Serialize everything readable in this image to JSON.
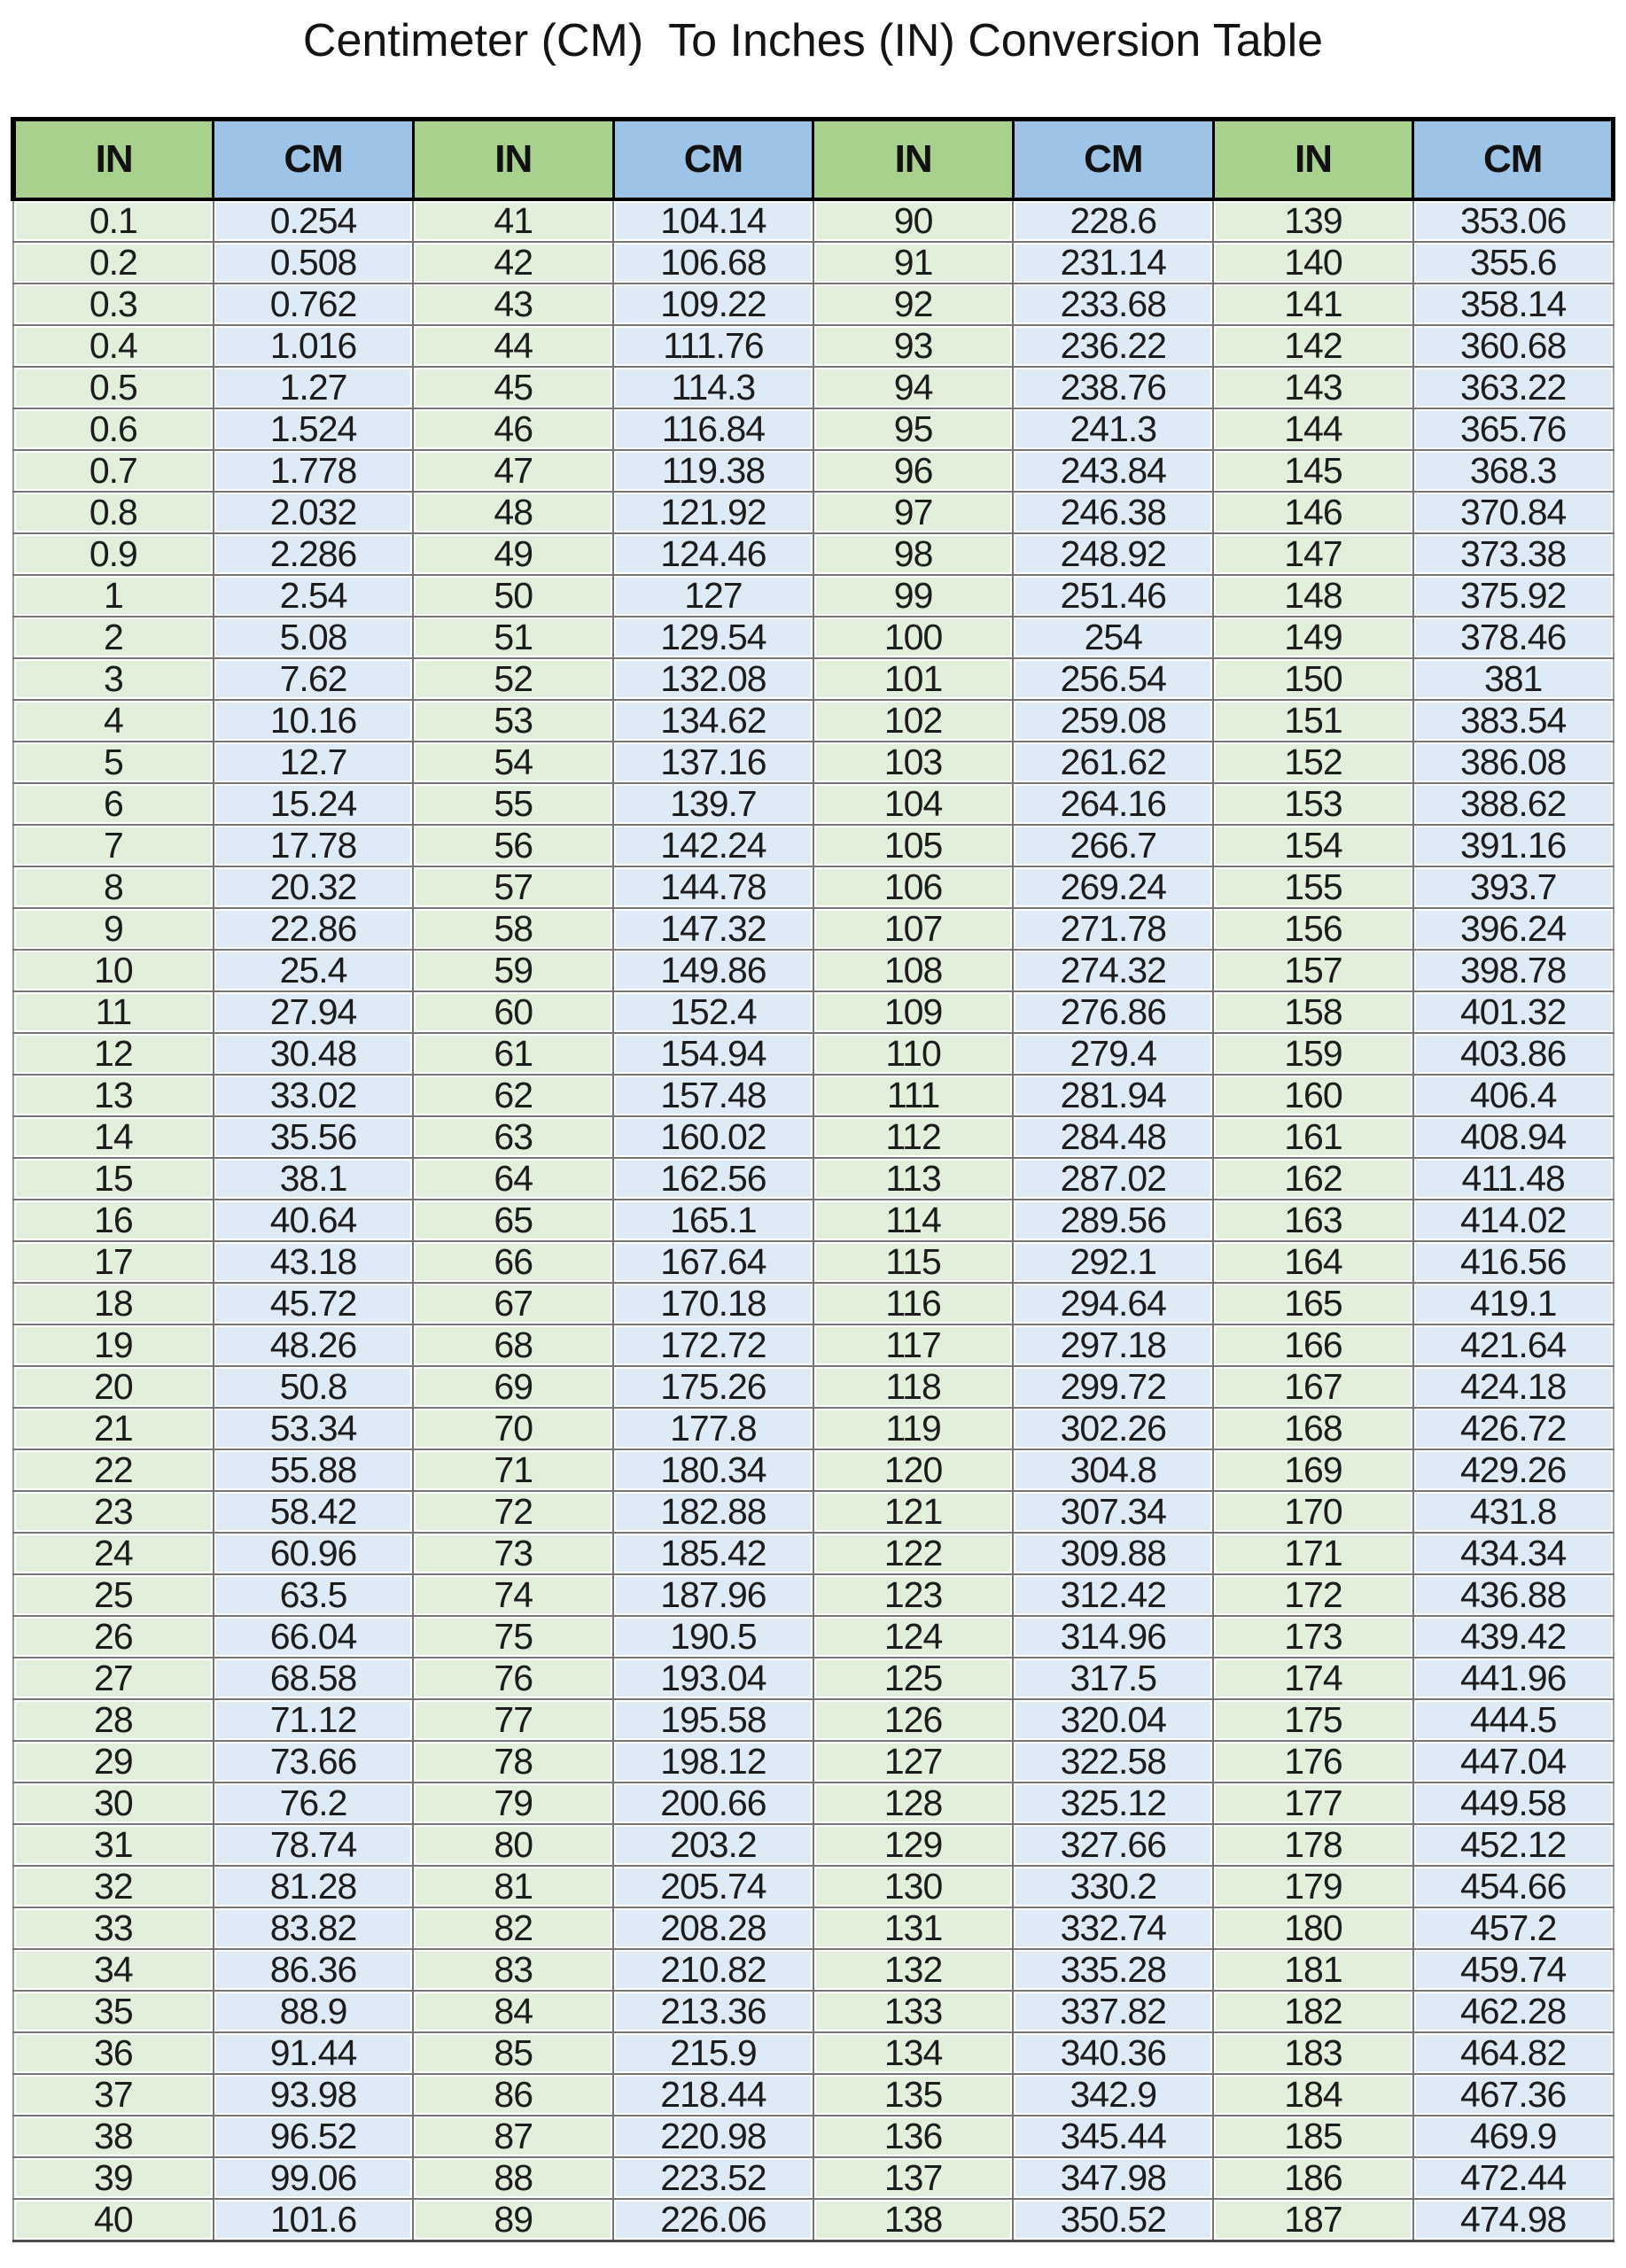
{
  "title": "Centimeter (CM)  To Inches (IN) Conversion Table",
  "colors": {
    "header_green": "#a9d18e",
    "header_blue": "#9dc3e6",
    "cell_green": "#e2efda",
    "cell_blue": "#deebf7",
    "grid_line": "#757575",
    "header_border": "#000000"
  },
  "table": {
    "headers": [
      "IN",
      "CM",
      "IN",
      "CM",
      "IN",
      "CM",
      "IN",
      "CM"
    ],
    "rows": [
      [
        "0.1",
        "0.254",
        "41",
        "104.14",
        "90",
        "228.6",
        "139",
        "353.06"
      ],
      [
        "0.2",
        "0.508",
        "42",
        "106.68",
        "91",
        "231.14",
        "140",
        "355.6"
      ],
      [
        "0.3",
        "0.762",
        "43",
        "109.22",
        "92",
        "233.68",
        "141",
        "358.14"
      ],
      [
        "0.4",
        "1.016",
        "44",
        "111.76",
        "93",
        "236.22",
        "142",
        "360.68"
      ],
      [
        "0.5",
        "1.27",
        "45",
        "114.3",
        "94",
        "238.76",
        "143",
        "363.22"
      ],
      [
        "0.6",
        "1.524",
        "46",
        "116.84",
        "95",
        "241.3",
        "144",
        "365.76"
      ],
      [
        "0.7",
        "1.778",
        "47",
        "119.38",
        "96",
        "243.84",
        "145",
        "368.3"
      ],
      [
        "0.8",
        "2.032",
        "48",
        "121.92",
        "97",
        "246.38",
        "146",
        "370.84"
      ],
      [
        "0.9",
        "2.286",
        "49",
        "124.46",
        "98",
        "248.92",
        "147",
        "373.38"
      ],
      [
        "1",
        "2.54",
        "50",
        "127",
        "99",
        "251.46",
        "148",
        "375.92"
      ],
      [
        "2",
        "5.08",
        "51",
        "129.54",
        "100",
        "254",
        "149",
        "378.46"
      ],
      [
        "3",
        "7.62",
        "52",
        "132.08",
        "101",
        "256.54",
        "150",
        "381"
      ],
      [
        "4",
        "10.16",
        "53",
        "134.62",
        "102",
        "259.08",
        "151",
        "383.54"
      ],
      [
        "5",
        "12.7",
        "54",
        "137.16",
        "103",
        "261.62",
        "152",
        "386.08"
      ],
      [
        "6",
        "15.24",
        "55",
        "139.7",
        "104",
        "264.16",
        "153",
        "388.62"
      ],
      [
        "7",
        "17.78",
        "56",
        "142.24",
        "105",
        "266.7",
        "154",
        "391.16"
      ],
      [
        "8",
        "20.32",
        "57",
        "144.78",
        "106",
        "269.24",
        "155",
        "393.7"
      ],
      [
        "9",
        "22.86",
        "58",
        "147.32",
        "107",
        "271.78",
        "156",
        "396.24"
      ],
      [
        "10",
        "25.4",
        "59",
        "149.86",
        "108",
        "274.32",
        "157",
        "398.78"
      ],
      [
        "11",
        "27.94",
        "60",
        "152.4",
        "109",
        "276.86",
        "158",
        "401.32"
      ],
      [
        "12",
        "30.48",
        "61",
        "154.94",
        "110",
        "279.4",
        "159",
        "403.86"
      ],
      [
        "13",
        "33.02",
        "62",
        "157.48",
        "111",
        "281.94",
        "160",
        "406.4"
      ],
      [
        "14",
        "35.56",
        "63",
        "160.02",
        "112",
        "284.48",
        "161",
        "408.94"
      ],
      [
        "15",
        "38.1",
        "64",
        "162.56",
        "113",
        "287.02",
        "162",
        "411.48"
      ],
      [
        "16",
        "40.64",
        "65",
        "165.1",
        "114",
        "289.56",
        "163",
        "414.02"
      ],
      [
        "17",
        "43.18",
        "66",
        "167.64",
        "115",
        "292.1",
        "164",
        "416.56"
      ],
      [
        "18",
        "45.72",
        "67",
        "170.18",
        "116",
        "294.64",
        "165",
        "419.1"
      ],
      [
        "19",
        "48.26",
        "68",
        "172.72",
        "117",
        "297.18",
        "166",
        "421.64"
      ],
      [
        "20",
        "50.8",
        "69",
        "175.26",
        "118",
        "299.72",
        "167",
        "424.18"
      ],
      [
        "21",
        "53.34",
        "70",
        "177.8",
        "119",
        "302.26",
        "168",
        "426.72"
      ],
      [
        "22",
        "55.88",
        "71",
        "180.34",
        "120",
        "304.8",
        "169",
        "429.26"
      ],
      [
        "23",
        "58.42",
        "72",
        "182.88",
        "121",
        "307.34",
        "170",
        "431.8"
      ],
      [
        "24",
        "60.96",
        "73",
        "185.42",
        "122",
        "309.88",
        "171",
        "434.34"
      ],
      [
        "25",
        "63.5",
        "74",
        "187.96",
        "123",
        "312.42",
        "172",
        "436.88"
      ],
      [
        "26",
        "66.04",
        "75",
        "190.5",
        "124",
        "314.96",
        "173",
        "439.42"
      ],
      [
        "27",
        "68.58",
        "76",
        "193.04",
        "125",
        "317.5",
        "174",
        "441.96"
      ],
      [
        "28",
        "71.12",
        "77",
        "195.58",
        "126",
        "320.04",
        "175",
        "444.5"
      ],
      [
        "29",
        "73.66",
        "78",
        "198.12",
        "127",
        "322.58",
        "176",
        "447.04"
      ],
      [
        "30",
        "76.2",
        "79",
        "200.66",
        "128",
        "325.12",
        "177",
        "449.58"
      ],
      [
        "31",
        "78.74",
        "80",
        "203.2",
        "129",
        "327.66",
        "178",
        "452.12"
      ],
      [
        "32",
        "81.28",
        "81",
        "205.74",
        "130",
        "330.2",
        "179",
        "454.66"
      ],
      [
        "33",
        "83.82",
        "82",
        "208.28",
        "131",
        "332.74",
        "180",
        "457.2"
      ],
      [
        "34",
        "86.36",
        "83",
        "210.82",
        "132",
        "335.28",
        "181",
        "459.74"
      ],
      [
        "35",
        "88.9",
        "84",
        "213.36",
        "133",
        "337.82",
        "182",
        "462.28"
      ],
      [
        "36",
        "91.44",
        "85",
        "215.9",
        "134",
        "340.36",
        "183",
        "464.82"
      ],
      [
        "37",
        "93.98",
        "86",
        "218.44",
        "135",
        "342.9",
        "184",
        "467.36"
      ],
      [
        "38",
        "96.52",
        "87",
        "220.98",
        "136",
        "345.44",
        "185",
        "469.9"
      ],
      [
        "39",
        "99.06",
        "88",
        "223.52",
        "137",
        "347.98",
        "186",
        "472.44"
      ],
      [
        "40",
        "101.6",
        "89",
        "226.06",
        "138",
        "350.52",
        "187",
        "474.98"
      ]
    ]
  }
}
